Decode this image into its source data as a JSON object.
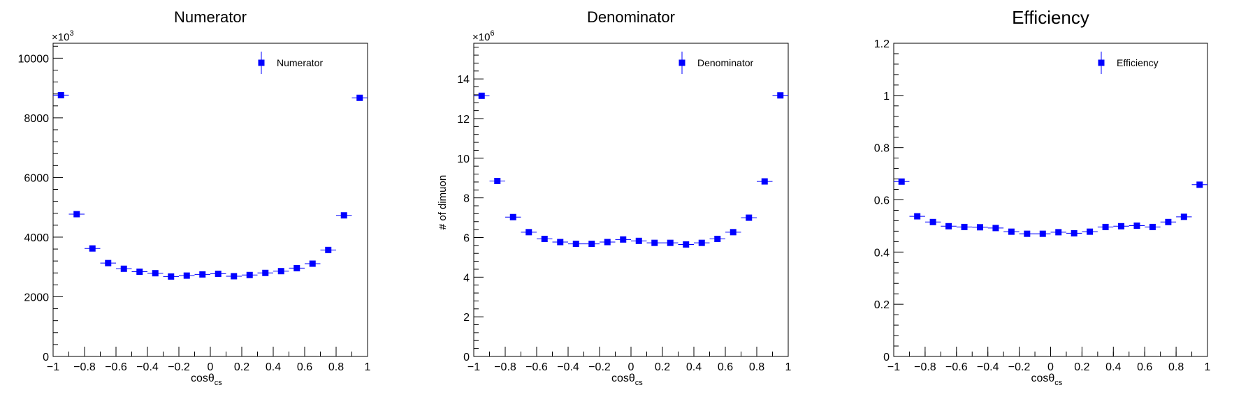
{
  "colors": {
    "marker": "#0000ff",
    "axis": "#000000",
    "background": "#ffffff"
  },
  "chart_data": [
    {
      "type": "scatter",
      "title": "Numerator",
      "xlabel": "cosθ",
      "xlabel_sub": "cs",
      "ylabel": "",
      "exponent": "×10",
      "exponent_power": "3",
      "legend": "Numerator",
      "legend_position": "top-right",
      "xlim": [
        -1,
        1
      ],
      "ylim": [
        0,
        10500
      ],
      "x_ticks": [
        -1,
        -0.8,
        -0.6,
        -0.4,
        -0.2,
        0,
        0.2,
        0.4,
        0.6,
        0.8,
        1
      ],
      "x_tick_labels": [
        "−1",
        "−0.8",
        "−0.6",
        "−0.4",
        "−0.2",
        "0",
        "0.2",
        "0.4",
        "0.6",
        "0.8",
        "1"
      ],
      "y_ticks": [
        0,
        2000,
        4000,
        6000,
        8000,
        10000
      ],
      "y_tick_labels": [
        "0",
        "2000",
        "4000",
        "6000",
        "8000",
        "10000"
      ],
      "x": [
        -0.95,
        -0.85,
        -0.75,
        -0.65,
        -0.55,
        -0.45,
        -0.35,
        -0.25,
        -0.15,
        -0.05,
        0.05,
        0.15,
        0.25,
        0.35,
        0.45,
        0.55,
        0.65,
        0.75,
        0.85,
        0.95
      ],
      "values": [
        8760,
        4770,
        3620,
        3130,
        2940,
        2840,
        2790,
        2680,
        2710,
        2750,
        2770,
        2690,
        2730,
        2800,
        2860,
        2960,
        3110,
        3570,
        4730,
        8670
      ],
      "bin_width": 0.1
    },
    {
      "type": "scatter",
      "title": "Denominator",
      "xlabel": "cosθ",
      "xlabel_sub": "cs",
      "ylabel": "# of dimuon",
      "exponent": "×10",
      "exponent_power": "6",
      "legend": "Denominator",
      "legend_position": "top-right",
      "xlim": [
        -1,
        1
      ],
      "ylim": [
        0,
        15.8
      ],
      "x_ticks": [
        -1,
        -0.8,
        -0.6,
        -0.4,
        -0.2,
        0,
        0.2,
        0.4,
        0.6,
        0.8,
        1
      ],
      "x_tick_labels": [
        "−1",
        "−0.8",
        "−0.6",
        "−0.4",
        "−0.2",
        "0",
        "0.2",
        "0.4",
        "0.6",
        "0.8",
        "1"
      ],
      "y_ticks": [
        0,
        2,
        4,
        6,
        8,
        10,
        12,
        14
      ],
      "y_tick_labels": [
        "0",
        "2",
        "4",
        "6",
        "8",
        "10",
        "12",
        "14"
      ],
      "x": [
        -0.95,
        -0.85,
        -0.75,
        -0.65,
        -0.55,
        -0.45,
        -0.35,
        -0.25,
        -0.15,
        -0.05,
        0.05,
        0.15,
        0.25,
        0.35,
        0.45,
        0.55,
        0.65,
        0.75,
        0.85,
        0.95
      ],
      "values": [
        13.15,
        8.85,
        7.03,
        6.27,
        5.93,
        5.77,
        5.68,
        5.68,
        5.77,
        5.9,
        5.83,
        5.73,
        5.73,
        5.65,
        5.73,
        5.93,
        6.27,
        7.0,
        8.83,
        13.17
      ],
      "bin_width": 0.1
    },
    {
      "type": "scatter",
      "title": "Efficiency",
      "xlabel": "cosθ",
      "xlabel_sub": "cs",
      "ylabel": "",
      "exponent": "",
      "exponent_power": "",
      "legend": "Efficiency",
      "legend_position": "top-right",
      "xlim": [
        -1,
        1
      ],
      "ylim": [
        0,
        1.2
      ],
      "x_ticks": [
        -1,
        -0.8,
        -0.6,
        -0.4,
        -0.2,
        0,
        0.2,
        0.4,
        0.6,
        0.8,
        1
      ],
      "x_tick_labels": [
        "−1",
        "−0.8",
        "−0.6",
        "−0.4",
        "−0.2",
        "0",
        "0.2",
        "0.4",
        "0.6",
        "0.8",
        "1"
      ],
      "y_ticks": [
        0,
        0.2,
        0.4,
        0.6,
        0.8,
        1,
        1.2
      ],
      "y_tick_labels": [
        "0",
        "0.2",
        "0.4",
        "0.6",
        "0.8",
        "1",
        "1.2"
      ],
      "x": [
        -0.95,
        -0.85,
        -0.75,
        -0.65,
        -0.55,
        -0.45,
        -0.35,
        -0.25,
        -0.15,
        -0.05,
        0.05,
        0.15,
        0.25,
        0.35,
        0.45,
        0.55,
        0.65,
        0.75,
        0.85,
        0.95
      ],
      "values": [
        0.67,
        0.537,
        0.515,
        0.499,
        0.496,
        0.495,
        0.492,
        0.478,
        0.47,
        0.47,
        0.476,
        0.472,
        0.478,
        0.496,
        0.499,
        0.501,
        0.496,
        0.515,
        0.535,
        0.658
      ],
      "bin_width": 0.1
    }
  ]
}
